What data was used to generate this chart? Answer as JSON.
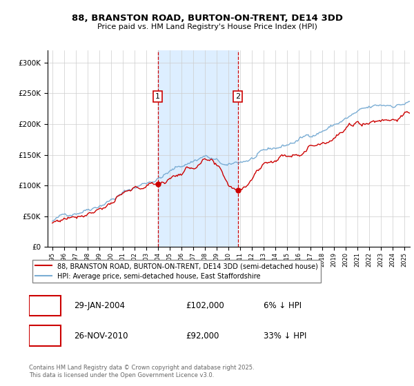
{
  "title_line1": "88, BRANSTON ROAD, BURTON-ON-TRENT, DE14 3DD",
  "title_line2": "Price paid vs. HM Land Registry's House Price Index (HPI)",
  "ylim": [
    0,
    320000
  ],
  "yticks": [
    0,
    50000,
    100000,
    150000,
    200000,
    250000,
    300000
  ],
  "ytick_labels": [
    "£0",
    "£50K",
    "£100K",
    "£150K",
    "£200K",
    "£250K",
    "£300K"
  ],
  "sale1_year": 2004,
  "sale1_month": 1,
  "sale1_price": 102000,
  "sale2_year": 2010,
  "sale2_month": 11,
  "sale2_price": 92000,
  "legend_property": "88, BRANSTON ROAD, BURTON-ON-TRENT, DE14 3DD (semi-detached house)",
  "legend_hpi": "HPI: Average price, semi-detached house, East Staffordshire",
  "footer": "Contains HM Land Registry data © Crown copyright and database right 2025.\nThis data is licensed under the Open Government Licence v3.0.",
  "property_color": "#cc0000",
  "hpi_color": "#7aadd4",
  "shade_color": "#ddeeff",
  "vline_color": "#cc0000",
  "background_color": "#ffffff",
  "grid_color": "#cccccc",
  "sale1_date_str": "29-JAN-2004",
  "sale1_pct_str": "6% ↓ HPI",
  "sale2_date_str": "26-NOV-2010",
  "sale2_pct_str": "33% ↓ HPI",
  "sale1_price_str": "£102,000",
  "sale2_price_str": "£92,000"
}
